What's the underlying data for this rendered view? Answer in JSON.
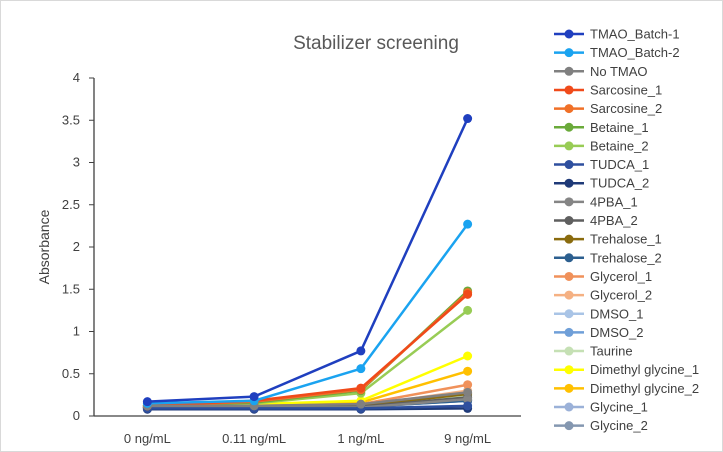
{
  "chart_data": {
    "type": "line",
    "title": "Stabilizer screening",
    "xlabel": "",
    "ylabel": "Absorbance",
    "categories": [
      "0 ng/mL",
      "0.11 ng/mL",
      "1 ng/mL",
      "9 ng/mL"
    ],
    "ylim": [
      0,
      4
    ],
    "yticks": [
      0,
      0.5,
      1,
      1.5,
      2,
      2.5,
      3,
      3.5,
      4
    ],
    "ytick_labels": [
      "0",
      "0.5",
      "1",
      "1.5",
      "2",
      "2.5",
      "3",
      "3.5",
      "4"
    ],
    "grid": false,
    "legend_position": "right",
    "series": [
      {
        "name": "TMAO_Batch-1",
        "color": "#1f3fbf",
        "values": [
          0.17,
          0.23,
          0.77,
          3.52
        ]
      },
      {
        "name": "TMAO_Batch-2",
        "color": "#1aa3f0",
        "values": [
          0.15,
          0.18,
          0.56,
          2.27
        ]
      },
      {
        "name": "No TMAO",
        "color": "#808080",
        "values": [
          0.12,
          0.12,
          0.14,
          0.28
        ]
      },
      {
        "name": "Sarcosine_1",
        "color": "#f04a1a",
        "values": [
          0.12,
          0.18,
          0.33,
          1.44
        ]
      },
      {
        "name": "Sarcosine_2",
        "color": "#f07028",
        "values": [
          0.12,
          0.17,
          0.31,
          1.46
        ]
      },
      {
        "name": "Betaine_1",
        "color": "#6aaa3a",
        "values": [
          0.12,
          0.16,
          0.3,
          1.48
        ]
      },
      {
        "name": "Betaine_2",
        "color": "#98cc55",
        "values": [
          0.12,
          0.15,
          0.27,
          1.25
        ]
      },
      {
        "name": "TUDCA_1",
        "color": "#2e4f9e",
        "values": [
          0.09,
          0.09,
          0.09,
          0.12
        ]
      },
      {
        "name": "TUDCA_2",
        "color": "#1f3a78",
        "values": [
          0.08,
          0.08,
          0.08,
          0.09
        ]
      },
      {
        "name": "4PBA_1",
        "color": "#858585",
        "values": [
          0.1,
          0.1,
          0.1,
          0.2
        ]
      },
      {
        "name": "4PBA_2",
        "color": "#5f5f5f",
        "values": [
          0.1,
          0.1,
          0.11,
          0.22
        ]
      },
      {
        "name": "Trehalose_1",
        "color": "#8a6b0e",
        "values": [
          0.1,
          0.11,
          0.12,
          0.26
        ]
      },
      {
        "name": "Trehalose_2",
        "color": "#2c5f8f",
        "values": [
          0.09,
          0.1,
          0.11,
          0.18
        ]
      },
      {
        "name": "Glycerol_1",
        "color": "#f0915a",
        "values": [
          0.11,
          0.12,
          0.14,
          0.37
        ]
      },
      {
        "name": "Glycerol_2",
        "color": "#f5b183",
        "values": [
          0.1,
          0.11,
          0.12,
          0.3
        ]
      },
      {
        "name": "DMSO_1",
        "color": "#a9c4e6",
        "values": [
          0.1,
          0.1,
          0.11,
          0.2
        ]
      },
      {
        "name": "DMSO_2",
        "color": "#6f9fd8",
        "values": [
          0.1,
          0.1,
          0.11,
          0.18
        ]
      },
      {
        "name": "Taurine",
        "color": "#c5e0b4",
        "values": [
          0.1,
          0.11,
          0.11,
          0.24
        ]
      },
      {
        "name": "Dimethyl glycine_1",
        "color": "#ffff00",
        "values": [
          0.13,
          0.14,
          0.18,
          0.71
        ]
      },
      {
        "name": "Dimethyl glycine_2",
        "color": "#ffc000",
        "values": [
          0.12,
          0.13,
          0.16,
          0.53
        ]
      },
      {
        "name": "Glycine_1",
        "color": "#9bb1d8",
        "values": [
          0.1,
          0.1,
          0.11,
          0.22
        ]
      },
      {
        "name": "Glycine_2",
        "color": "#8497b0",
        "values": [
          0.1,
          0.1,
          0.1,
          0.19
        ]
      }
    ]
  }
}
